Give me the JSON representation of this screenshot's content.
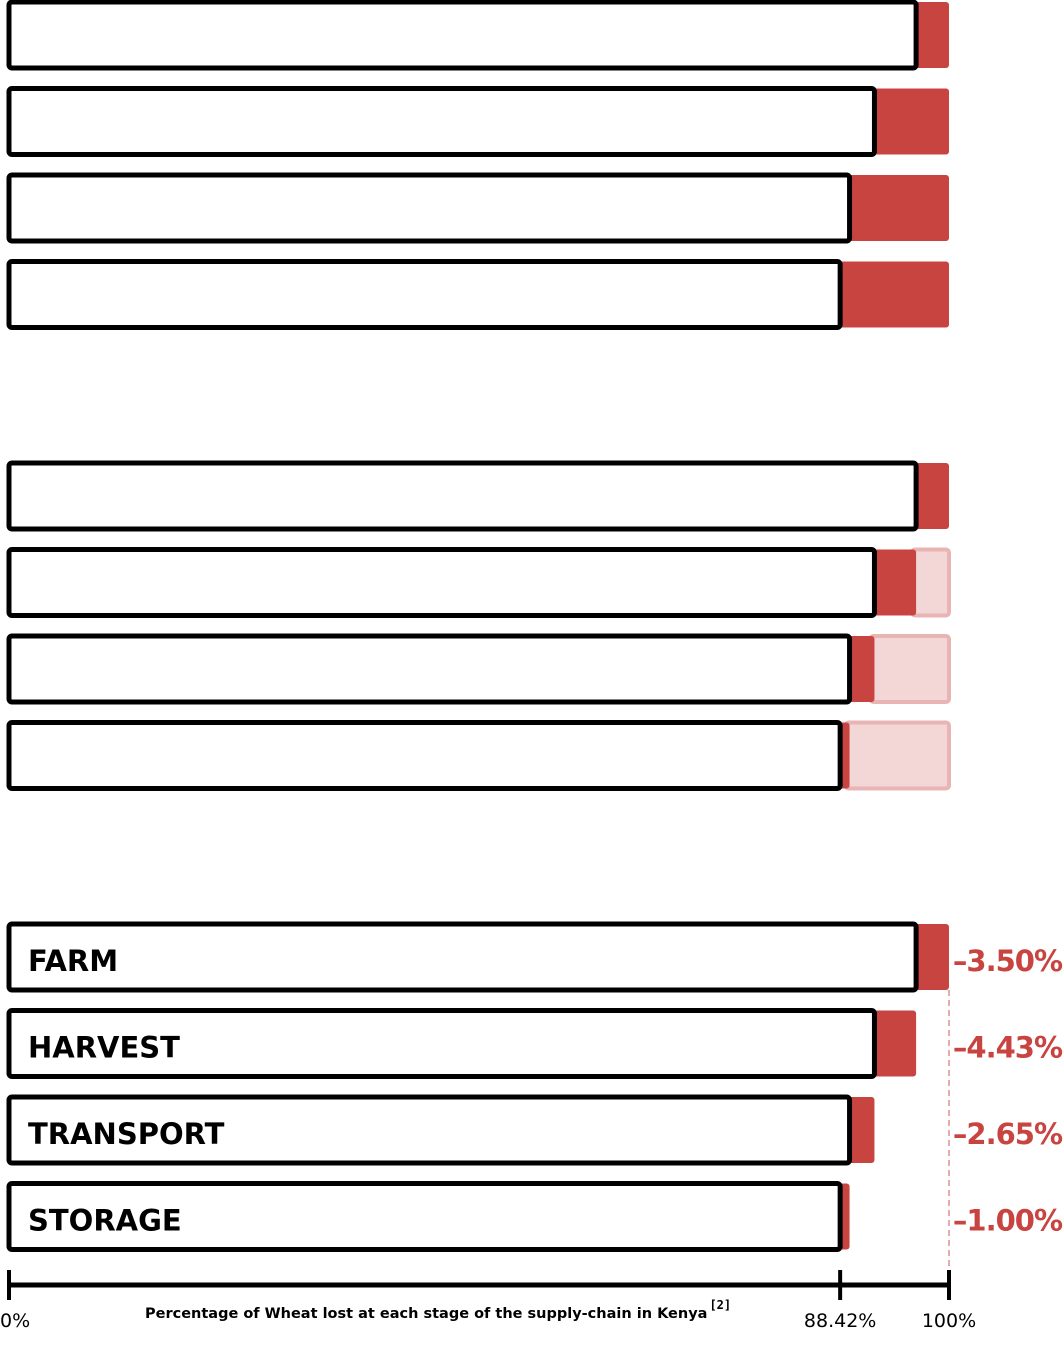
{
  "chart_data": {
    "type": "bar",
    "title": "",
    "caption": "Percentage of Wheat lost at each stage of the supply-chain in Kenya",
    "caption_ref": "[2]",
    "categories": [
      "FARM",
      "HARVEST",
      "TRANSPORT",
      "STORAGE"
    ],
    "loss_labels": [
      "–3.50%",
      "–4.43%",
      "–2.65%",
      "–1.00%"
    ],
    "loss_values": [
      3.5,
      4.43,
      2.65,
      1.0
    ],
    "remaining_values": [
      96.5,
      92.07,
      89.42,
      88.42
    ],
    "x_ticks": [
      "0%",
      "88.42%",
      "100%"
    ],
    "x_tick_values": [
      0,
      88.42,
      100
    ],
    "xlim": [
      0,
      100
    ],
    "panels": [
      "cumulative-loss",
      "stage-loss-with-prior",
      "stage-loss-labeled"
    ],
    "colors": {
      "loss": "#c84440",
      "prior_loss": "#f3d6d6",
      "bar_fill": "#ffffff",
      "outline": "#000000"
    }
  }
}
